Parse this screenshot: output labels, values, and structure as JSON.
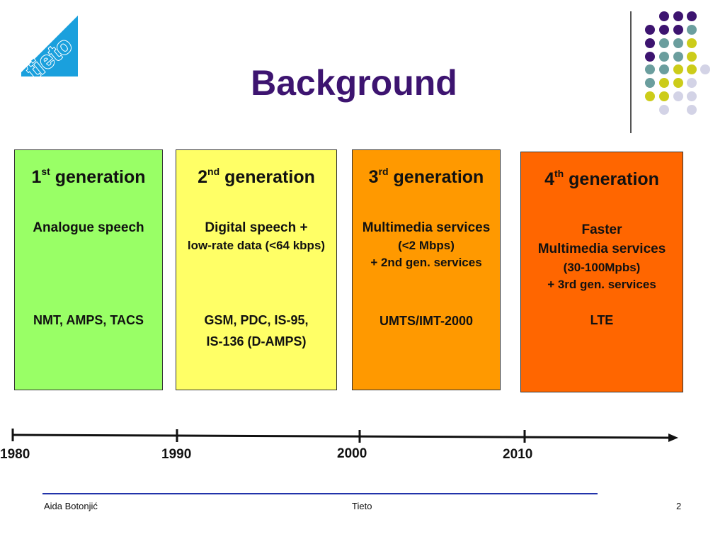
{
  "logo": {
    "text": "tieto",
    "color": "#1aa0dd"
  },
  "title": "Background",
  "generations": [
    {
      "num": "1",
      "sup": "st",
      "word": "generation",
      "lines": [
        "Analogue speech"
      ],
      "systems": [
        "NMT, AMPS, TACS"
      ],
      "color": "#99ff66"
    },
    {
      "num": "2",
      "sup": "nd",
      "word": "generation",
      "lines": [
        "Digital speech +",
        "low-rate data (<64 kbps)"
      ],
      "systems": [
        "GSM, PDC, IS-95,",
        "IS-136 (D-AMPS)"
      ],
      "color": "#ffff66"
    },
    {
      "num": "3",
      "sup": "rd",
      "word": "generation",
      "lines": [
        "Multimedia services",
        "(<2 Mbps)",
        "+ 2nd gen. services"
      ],
      "systems": [
        "UMTS/IMT-2000"
      ],
      "color": "#ff9900"
    },
    {
      "num": "4",
      "sup": "th",
      "word": "generation",
      "lines": [
        "Faster",
        "Multimedia services",
        "(30-100Mpbs)",
        "+ 3rd gen. services"
      ],
      "systems": [
        "LTE"
      ],
      "color": "#ff6600"
    }
  ],
  "timeline": {
    "years": [
      "1980",
      "1990",
      "2000",
      "2010"
    ]
  },
  "footer": {
    "author": "Aida Botonjić",
    "company": "Tieto",
    "page": "2"
  },
  "colors": {
    "purple": "#3d1470",
    "teal": "#6b9e9e",
    "yellow": "#cccc1a",
    "lavender": "#d3d3e6"
  }
}
